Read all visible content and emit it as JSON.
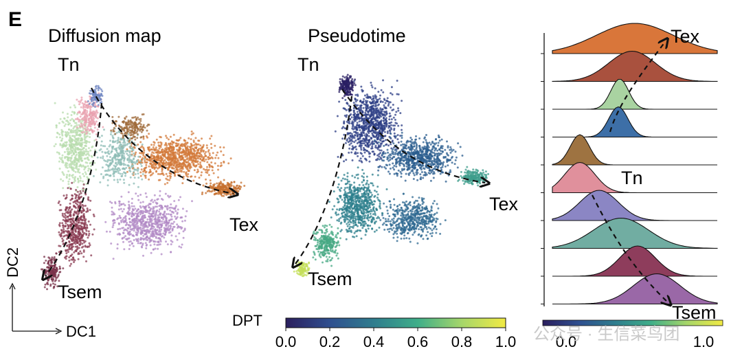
{
  "panel_letter": "E",
  "watermark": "公众号 · 生信菜鸟团",
  "chart_data": [
    {
      "type": "scatter",
      "title": "Diffusion map",
      "xlabel": "DC1",
      "ylabel": "DC2",
      "trajectory_labels": [
        "Tn",
        "Tex",
        "Tsem"
      ],
      "description_series": [
        "orange",
        "pink",
        "light green",
        "teal",
        "maroon",
        "purple",
        "brown",
        "blue"
      ]
    },
    {
      "type": "scatter",
      "title": "Pseudotime",
      "trajectory_labels": [
        "Tn",
        "Tex",
        "Tsem"
      ],
      "colorbar": {
        "label": "DPT",
        "range": [
          0.0,
          1.0
        ],
        "ticks": [
          "0.0",
          "0.2",
          "0.4",
          "0.6",
          "0.8",
          "1.0"
        ],
        "tick_values": [
          0.0,
          0.2,
          0.4,
          0.6,
          0.8,
          1.0
        ]
      }
    },
    {
      "type": "area",
      "title": "",
      "annotations": [
        "Tex",
        "Tn",
        "Tsem"
      ],
      "x_ticks": [
        "0.0",
        "1.0"
      ],
      "x_tick_values": [
        0.0,
        1.0
      ],
      "xlim": [
        -0.1,
        1.1
      ],
      "series": [
        {
          "name": "orange",
          "color": "#d9763a",
          "peak": 0.5,
          "spread": 0.28
        },
        {
          "name": "brown-red",
          "color": "#a9513e",
          "peak": 0.48,
          "spread": 0.17
        },
        {
          "name": "light green",
          "color": "#a9d3a1",
          "peak": 0.39,
          "spread": 0.065
        },
        {
          "name": "blue",
          "color": "#3d6fa7",
          "peak": 0.38,
          "spread": 0.07
        },
        {
          "name": "brown",
          "color": "#9e7341",
          "peak": 0.1,
          "spread": 0.07
        },
        {
          "name": "pink",
          "color": "#e0909c",
          "peak": 0.1,
          "spread": 0.11
        },
        {
          "name": "lavender",
          "color": "#8b86c4",
          "peak": 0.24,
          "spread": 0.14
        },
        {
          "name": "teal",
          "color": "#71ada2",
          "peak": 0.4,
          "spread": 0.2
        },
        {
          "name": "maroon",
          "color": "#8e3d5c",
          "peak": 0.52,
          "spread": 0.13
        },
        {
          "name": "purple",
          "color": "#9a68a7",
          "peak": 0.66,
          "spread": 0.17
        }
      ]
    }
  ]
}
